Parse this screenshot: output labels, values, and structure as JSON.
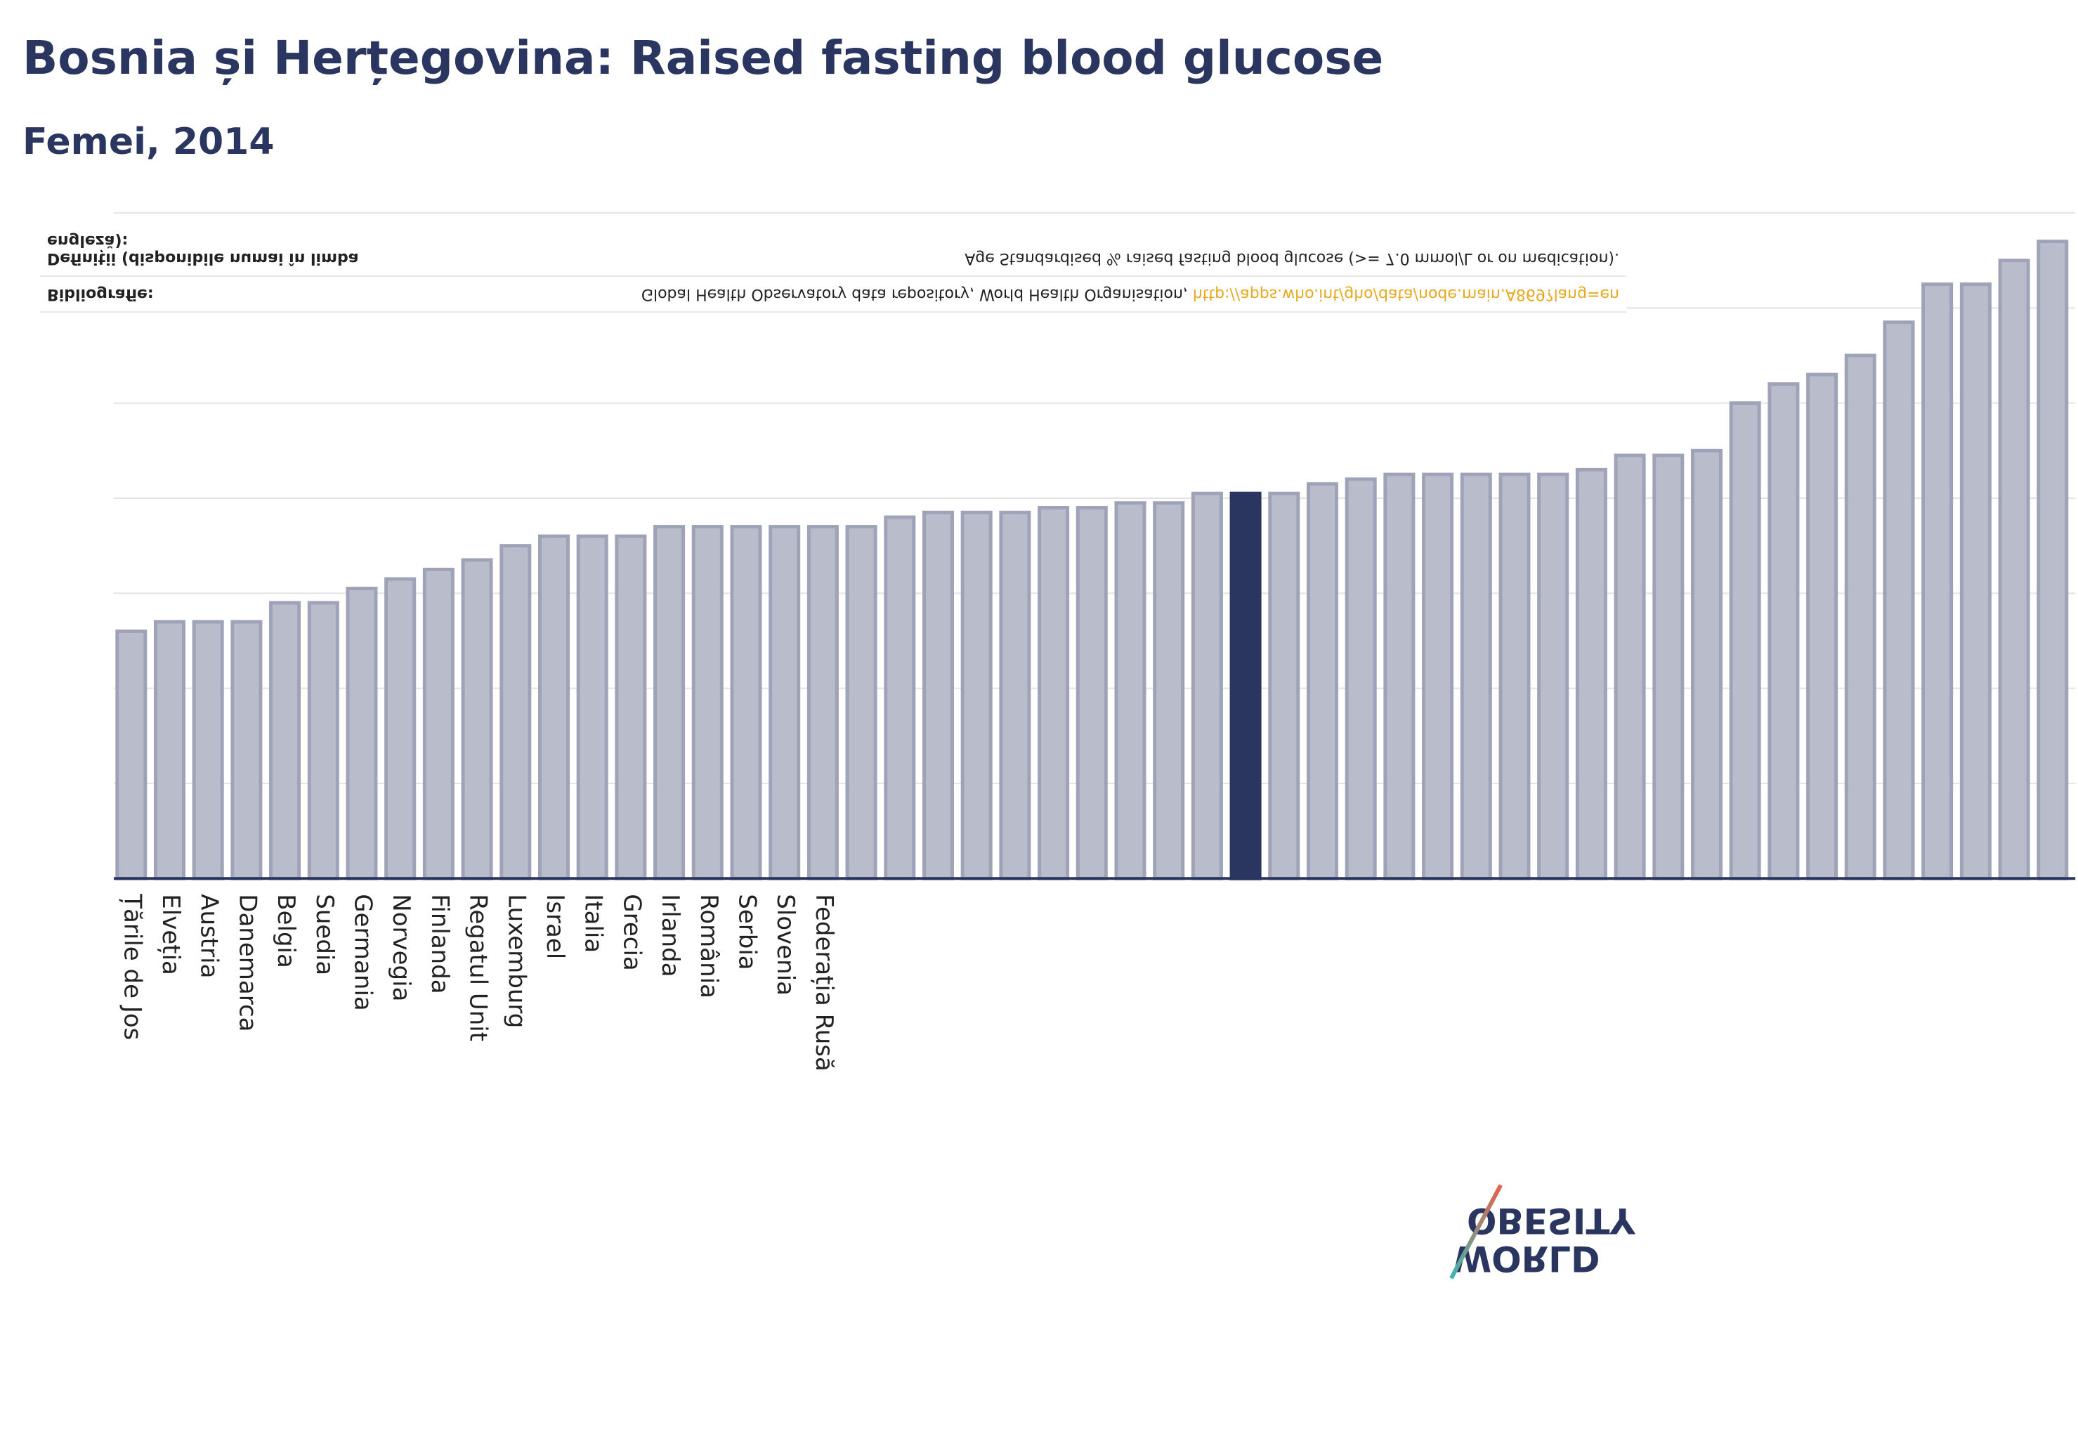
{
  "chart_data": {
    "type": "bar",
    "title": "Bosnia și Herțegovina: Raised fasting blood glucose",
    "subtitle": "Femei, 2014",
    "categories": [
      "Țările de Jos",
      "Elveția",
      "Austria",
      "Danemarca",
      "Belgia",
      "Suedia",
      "Germania",
      "Norvegia",
      "Finlanda",
      "Regatul Unit",
      "Luxemburg",
      "Israel",
      "Italia",
      "Grecia",
      "Irlanda",
      "România",
      "Serbia",
      "Slovenia",
      "Federația Rusă",
      null,
      null,
      null,
      null,
      null,
      null,
      null,
      null,
      null,
      null,
      null,
      null,
      null,
      null,
      null,
      null,
      null,
      null,
      null,
      null,
      null,
      null,
      null,
      null,
      null,
      null,
      null,
      null,
      null,
      null,
      null,
      null
    ],
    "values": [
      5.2,
      5.4,
      5.4,
      5.4,
      5.8,
      5.8,
      6.1,
      6.3,
      6.5,
      6.7,
      7.0,
      7.2,
      7.2,
      7.2,
      7.4,
      7.4,
      7.4,
      7.4,
      7.4,
      7.4,
      7.6,
      7.7,
      7.7,
      7.7,
      7.8,
      7.8,
      7.9,
      7.9,
      8.1,
      8.1,
      8.1,
      8.3,
      8.4,
      8.5,
      8.5,
      8.5,
      8.5,
      8.5,
      8.6,
      8.9,
      8.9,
      9.0,
      10.0,
      10.4,
      10.6,
      11.0,
      11.7,
      12.5,
      12.5,
      13.0,
      13.4
    ],
    "bar_colors": [
      "#b9bdcb",
      "#b9bdcb",
      "#b9bdcb",
      "#b9bdcb",
      "#b9bdcb",
      "#b9bdcb",
      "#b9bdcb",
      "#b9bdcb",
      "#b9bdcb",
      "#b9bdcb",
      "#b9bdcb",
      "#b9bdcb",
      "#b9bdcb",
      "#b9bdcb",
      "#b9bdcb",
      "#b9bdcb",
      "#b9bdcb",
      "#b9bdcb",
      "#b9bdcb",
      "#b9bdcb",
      "#b9bdcb",
      "#b9bdcb",
      "#b9bdcb",
      "#b9bdcb",
      "#b9bdcb",
      "#b9bdcb",
      "#b9bdcb",
      "#b9bdcb",
      "#b9bdcb",
      "#2a3560",
      "#b9bdcb",
      "#b9bdcb",
      "#b9bdcb",
      "#b9bdcb",
      "#b9bdcb",
      "#b9bdcb",
      "#b9bdcb",
      "#b9bdcb",
      "#b9bdcb",
      "#b9bdcb",
      "#b9bdcb",
      "#b9bdcb",
      "#b9bdcb",
      "#b9bdcb",
      "#b9bdcb",
      "#b9bdcb",
      "#b9bdcb",
      "#b9bdcb",
      "#b9bdcb",
      "#b9bdcb",
      "#b9bdcb"
    ],
    "ylim": [
      0,
      14
    ],
    "yticks": [
      0,
      2,
      4,
      6,
      8,
      10,
      12,
      14
    ],
    "grid": true,
    "notes": {
      "bibliography_label": "Bibliografie:",
      "bibliography_text": "Global Health Observatory data repository, World Health Organisation, ",
      "bibliography_link": "http://apps.who.int/gho/data/node.main.A869?lang=en",
      "definition_label": "Definiții (disponibile numai în limba engleză):",
      "definition_text": "Age Standardised % raised fasting blood glucose (>= 7.0 mmol/L or on medication)."
    },
    "logo": [
      "WORLD",
      "OBESITY"
    ]
  }
}
